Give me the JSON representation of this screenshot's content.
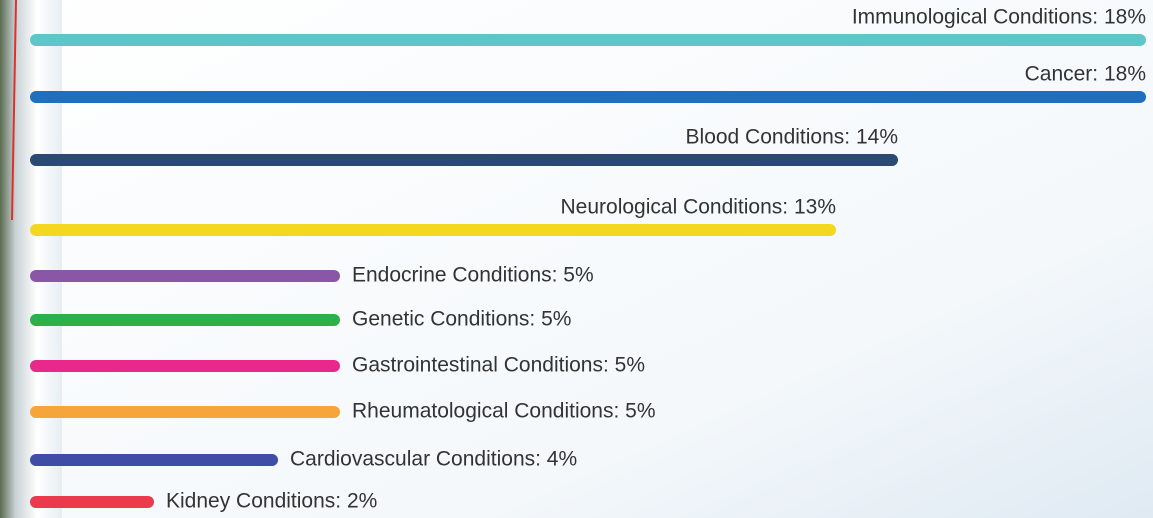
{
  "chart_data": {
    "type": "bar",
    "orientation": "horizontal",
    "values": [
      18,
      18,
      14,
      13,
      5,
      5,
      5,
      5,
      4,
      2
    ],
    "value_labels": [
      "Immunological Conditions: 18%",
      "Cancer: 18%",
      "Blood Conditions: 14%",
      "Neurological Conditions: 13%",
      "Endocrine Conditions: 5%",
      "Genetic Conditions: 5%",
      "Gastrointestinal Conditions: 5%",
      "Rheumatological Conditions: 5%",
      "Cardiovascular Conditions: 4%",
      "Kidney Conditions: 2%"
    ],
    "colors": [
      "#5cc6c9",
      "#1f6fc0",
      "#2a4a73",
      "#f4d820",
      "#8a56a6",
      "#2bb04a",
      "#e8288a",
      "#f6a53a",
      "#3f4da6",
      "#ea3a4c"
    ],
    "xlim": [
      0,
      18
    ]
  }
}
